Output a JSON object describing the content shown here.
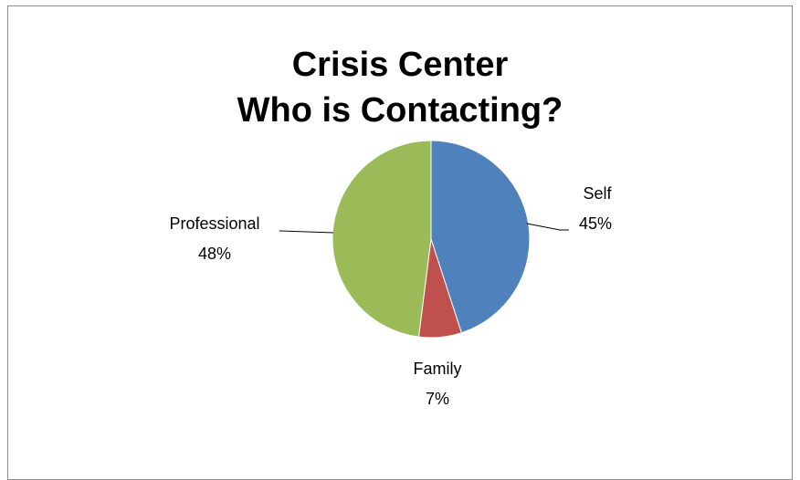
{
  "chart_data": {
    "type": "pie",
    "title_lines": [
      "Crisis Center",
      "Who is Contacting?"
    ],
    "slices": [
      {
        "name": "Self",
        "value": 45,
        "label": "45%",
        "color": "#4F81BD"
      },
      {
        "name": "Family",
        "value": 7,
        "label": "7%",
        "color": "#C0504D"
      },
      {
        "name": "Professional",
        "value": 48,
        "label": "48%",
        "color": "#9BBB59"
      }
    ]
  }
}
